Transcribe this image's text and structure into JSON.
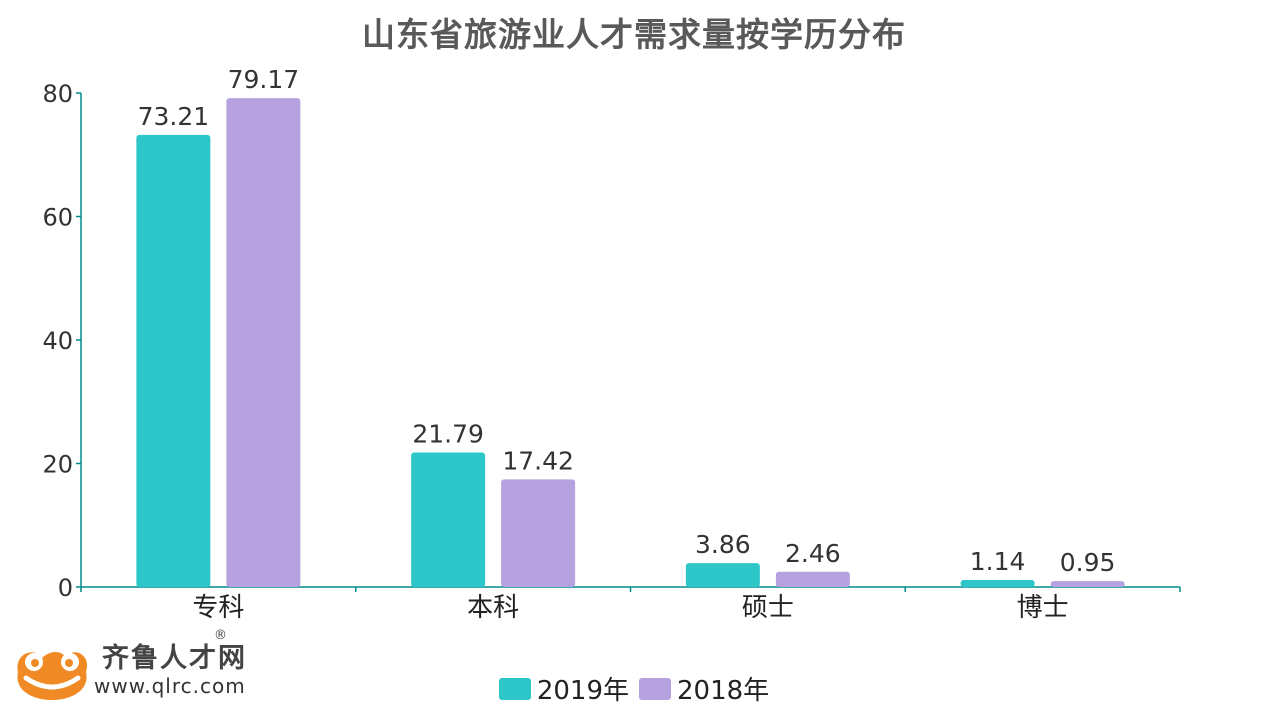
{
  "chart_data": {
    "type": "bar",
    "title": "山东省旅游业人才需求量按学历分布",
    "categories": [
      "专科",
      "本科",
      "硕士",
      "博士"
    ],
    "series": [
      {
        "name": "2019年",
        "color": "#2ec7c9",
        "values": [
          73.21,
          21.79,
          3.86,
          1.14
        ]
      },
      {
        "name": "2018年",
        "color": "#b6a2de",
        "values": [
          79.17,
          17.42,
          2.46,
          0.95
        ]
      }
    ],
    "ylim": [
      0,
      80
    ],
    "yticks": [
      0,
      20,
      40,
      60,
      80
    ],
    "grid": false,
    "legend": "bottom-center",
    "axis_color": "#008b8b"
  },
  "logo": {
    "name": "齐鲁人才网",
    "reg_mark": "®",
    "url": "www.qlrc.com",
    "color": "#f08a24"
  }
}
